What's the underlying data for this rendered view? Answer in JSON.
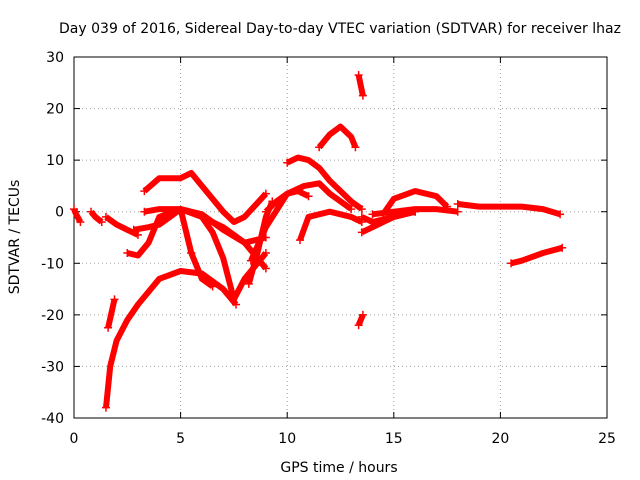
{
  "chart_data": {
    "type": "scatter",
    "title": "Day 039 of 2016, Sidereal Day-to-day VTEC variation (SDTVAR) for receiver lhaz",
    "xlabel": "GPS time / hours",
    "ylabel": "SDTVAR / TECUs",
    "xlim": [
      0,
      25
    ],
    "ylim": [
      -40,
      30
    ],
    "xticks": [
      0,
      5,
      10,
      15,
      20,
      25
    ],
    "yticks": [
      -40,
      -30,
      -20,
      -10,
      0,
      10,
      20,
      30
    ],
    "xtick_labels": [
      "0",
      "5",
      "10",
      "15",
      "20",
      "25"
    ],
    "ytick_labels": [
      "-40",
      "-30",
      "-20",
      "-10",
      "0",
      "10",
      "20",
      "30"
    ],
    "grid": true,
    "marker": "+",
    "color": "#ff0000",
    "series": [
      {
        "name": "s1",
        "x": [
          0.0,
          0.1,
          0.3
        ],
        "y": [
          0.5,
          -0.5,
          -2.0
        ]
      },
      {
        "name": "s2",
        "x": [
          0.8,
          1.0,
          1.3
        ],
        "y": [
          0.0,
          -1.0,
          -2.0
        ]
      },
      {
        "name": "s3",
        "x": [
          1.5,
          2.0,
          2.5,
          3.0
        ],
        "y": [
          -1.0,
          -2.5,
          -3.5,
          -4.5
        ]
      },
      {
        "name": "s4",
        "x": [
          1.5,
          1.7,
          2.0,
          2.5,
          3.0,
          4.0,
          5.0,
          6.0,
          7.0,
          7.6
        ],
        "y": [
          -38.0,
          -30.0,
          -25.0,
          -21.0,
          -18.0,
          -13.0,
          -11.5,
          -12.0,
          -15.0,
          -18.0
        ]
      },
      {
        "name": "s5",
        "x": [
          1.6,
          1.9
        ],
        "y": [
          -22.5,
          -17.0
        ]
      },
      {
        "name": "s6",
        "x": [
          2.5,
          3.0,
          3.5,
          4.0,
          5.0,
          6.0,
          7.0,
          8.0,
          9.0
        ],
        "y": [
          -8.0,
          -8.5,
          -6.0,
          -1.0,
          0.5,
          -1.0,
          -3.0,
          -6.0,
          -11.0
        ]
      },
      {
        "name": "s7",
        "x": [
          2.8,
          3.5,
          4.0,
          4.5,
          5.0,
          5.5
        ],
        "y": [
          -3.5,
          -3.0,
          -2.5,
          -1.0,
          0.5,
          -8.0
        ]
      },
      {
        "name": "s8",
        "x": [
          3.3,
          4.0,
          5.0,
          5.5,
          6.0,
          7.0,
          7.5,
          8.0,
          9.0
        ],
        "y": [
          4.0,
          6.5,
          6.5,
          7.5,
          5.0,
          0.0,
          -2.0,
          -1.0,
          3.5
        ]
      },
      {
        "name": "s9",
        "x": [
          3.3,
          4.0,
          5.0,
          6.0,
          7.0,
          8.0,
          9.0
        ],
        "y": [
          0.0,
          0.5,
          0.5,
          -0.5,
          -3.5,
          -6.0,
          -5.0
        ]
      },
      {
        "name": "s10",
        "x": [
          5.5,
          6.0,
          6.5
        ],
        "y": [
          -8.0,
          -13.0,
          -14.5
        ]
      },
      {
        "name": "s11",
        "x": [
          6.0,
          6.5,
          7.0,
          7.5,
          8.0,
          9.0
        ],
        "y": [
          -1.0,
          -4.0,
          -9.0,
          -17.0,
          -13.0,
          -8.0
        ]
      },
      {
        "name": "s12",
        "x": [
          8.2,
          8.6,
          9.0,
          9.3
        ],
        "y": [
          -14.0,
          -8.0,
          -1.0,
          2.0
        ]
      },
      {
        "name": "s13",
        "x": [
          8.3,
          9.0,
          10.0,
          10.8,
          11.5,
          12.0,
          13.0
        ],
        "y": [
          -9.5,
          -3.0,
          3.5,
          5.0,
          5.5,
          3.5,
          0.5
        ]
      },
      {
        "name": "s14",
        "x": [
          9.0,
          9.5,
          10.0,
          10.5,
          11.0
        ],
        "y": [
          0.0,
          2.0,
          3.5,
          4.0,
          3.0
        ]
      },
      {
        "name": "s15",
        "x": [
          10.0,
          10.5,
          11.0,
          11.5,
          12.0,
          13.0,
          13.5
        ],
        "y": [
          9.5,
          10.5,
          10.0,
          8.5,
          6.0,
          2.0,
          0.5
        ]
      },
      {
        "name": "s16",
        "x": [
          10.6,
          11.0,
          12.0,
          13.0,
          13.5
        ],
        "y": [
          -5.5,
          -1.0,
          0.0,
          -1.0,
          -2.0
        ]
      },
      {
        "name": "s17",
        "x": [
          11.5,
          12.0,
          12.5,
          13.0,
          13.2
        ],
        "y": [
          12.5,
          15.0,
          16.5,
          14.5,
          12.5
        ]
      },
      {
        "name": "s18",
        "x": [
          13.35,
          13.55
        ],
        "y": [
          26.5,
          22.5
        ]
      },
      {
        "name": "s19",
        "x": [
          13.35,
          13.55
        ],
        "y": [
          -22.0,
          -20.0
        ]
      },
      {
        "name": "s20",
        "x": [
          13.5,
          14.0,
          15.0,
          16.0
        ],
        "y": [
          -1.0,
          -2.0,
          -1.0,
          0.0
        ]
      },
      {
        "name": "s21",
        "x": [
          13.5,
          14.0,
          14.5,
          15.0,
          16.0
        ],
        "y": [
          -4.0,
          -3.0,
          -2.0,
          -1.0,
          0.0
        ]
      },
      {
        "name": "s22",
        "x": [
          14.5,
          15.0,
          16.0,
          17.0,
          17.5
        ],
        "y": [
          -0.5,
          2.5,
          4.0,
          3.0,
          1.0
        ]
      },
      {
        "name": "s23",
        "x": [
          14.0,
          15.0,
          16.0,
          17.0,
          18.0
        ],
        "y": [
          -0.5,
          0.0,
          0.5,
          0.5,
          0.0
        ]
      },
      {
        "name": "s24",
        "x": [
          18.0,
          19.0,
          20.0,
          21.0,
          22.0,
          22.8
        ],
        "y": [
          1.5,
          1.0,
          1.0,
          1.0,
          0.5,
          -0.5
        ]
      },
      {
        "name": "s25",
        "x": [
          20.5,
          21.0,
          22.0,
          22.9
        ],
        "y": [
          -10.0,
          -9.5,
          -8.0,
          -7.0
        ]
      }
    ]
  }
}
